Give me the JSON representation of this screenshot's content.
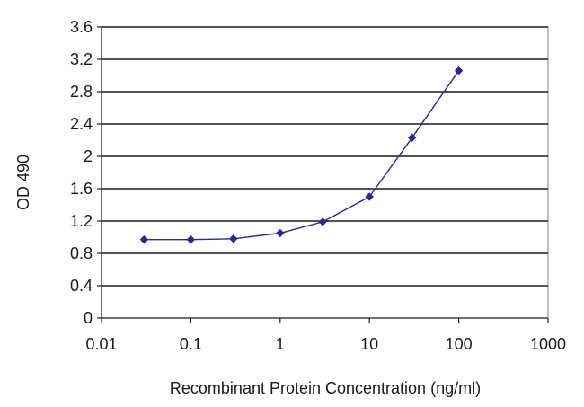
{
  "chart_data": {
    "type": "line",
    "title": "",
    "xlabel": "Recombinant Protein Concentration (ng/ml)",
    "ylabel": "OD 490",
    "x_scale": "log",
    "xlim": [
      0.01,
      1000
    ],
    "ylim": [
      0,
      3.6
    ],
    "x_ticks": [
      "0.01",
      "0.1",
      "1",
      "10",
      "100",
      "1000"
    ],
    "x_tick_values": [
      0.01,
      0.1,
      1,
      10,
      100,
      1000
    ],
    "y_ticks": [
      "0",
      "0.4",
      "0.8",
      "1.2",
      "1.6",
      "2",
      "2.4",
      "2.8",
      "3.2",
      "3.6"
    ],
    "y_tick_values": [
      0,
      0.4,
      0.8,
      1.2,
      1.6,
      2.0,
      2.4,
      2.8,
      3.2,
      3.6
    ],
    "grid": "horizontal",
    "legend": "none",
    "series": [
      {
        "x": [
          0.03,
          0.1,
          0.3,
          1,
          3,
          10,
          30,
          100
        ],
        "y": [
          0.97,
          0.97,
          0.98,
          1.05,
          1.19,
          1.5,
          2.23,
          3.06
        ],
        "color": "#2a2a8c",
        "marker": "diamond"
      }
    ],
    "colors": {
      "plot_background": "#ffffff",
      "plot_border": "#808080",
      "gridline": "#1a1a1a",
      "axis": "#1a1a1a"
    }
  }
}
